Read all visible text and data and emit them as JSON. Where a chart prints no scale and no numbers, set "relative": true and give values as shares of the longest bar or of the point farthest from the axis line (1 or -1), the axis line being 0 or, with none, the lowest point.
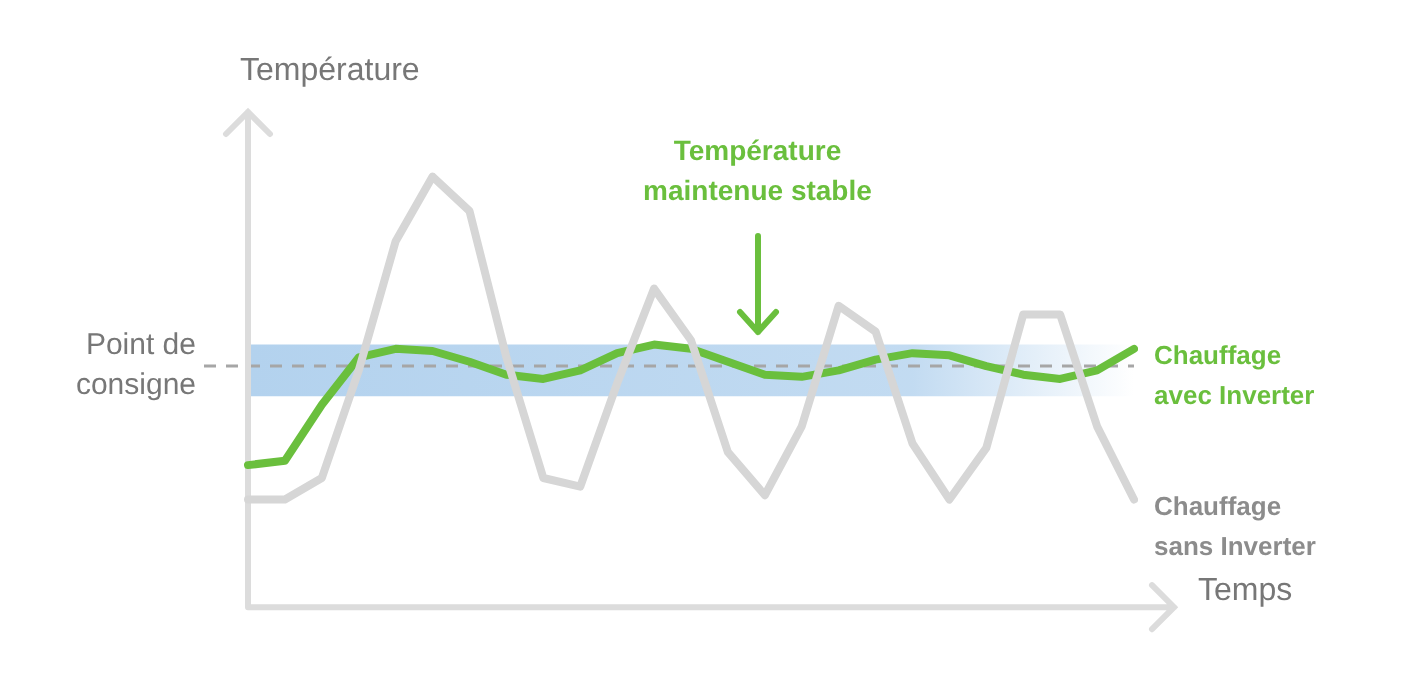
{
  "chart_data": {
    "type": "line",
    "relative": true,
    "ylabel": "Température",
    "xlabel": "Temps",
    "grid": false,
    "legend": false,
    "marker": "none",
    "line_style": "solid",
    "categories": [
      null,
      null,
      null,
      null,
      null,
      null,
      null,
      null,
      null,
      null,
      null,
      null,
      null,
      null,
      null,
      null,
      null,
      null,
      null,
      null,
      null,
      null,
      null,
      null,
      null
    ],
    "series": [
      {
        "name": "Chauffage sans Inverter",
        "color": "#d6d6d6",
        "values": [
          0.25,
          0.25,
          0.3,
          0.55,
          0.85,
          1,
          0.92,
          0.58,
          0.3,
          0.28,
          0.52,
          0.74,
          0.62,
          0.36,
          0.26,
          0.42,
          0.7,
          0.64,
          0.38,
          0.25,
          0.37,
          0.68,
          0.68,
          0.42,
          0.25
        ]
      },
      {
        "name": "Chauffage avec Inverter",
        "color": "#6abf3d",
        "values": [
          0.33,
          0.34,
          0.47,
          0.58,
          0.6,
          0.595,
          0.57,
          0.54,
          0.53,
          0.55,
          0.59,
          0.61,
          0.6,
          0.57,
          0.54,
          0.535,
          0.55,
          0.575,
          0.59,
          0.585,
          0.56,
          0.54,
          0.53,
          0.55,
          0.6
        ]
      }
    ],
    "ref_lines": [
      {
        "axis": "y",
        "value": 0.56,
        "label": "Point de consigne",
        "color": "#a6a6a6",
        "line_style": "dashed"
      }
    ],
    "bands": [
      {
        "axis": "y",
        "from": 0.49,
        "to": 0.61,
        "color": "#b3d2ee"
      }
    ],
    "annotations": [
      {
        "text": "Température maintenue stable",
        "y": 0.63
      }
    ]
  }
}
